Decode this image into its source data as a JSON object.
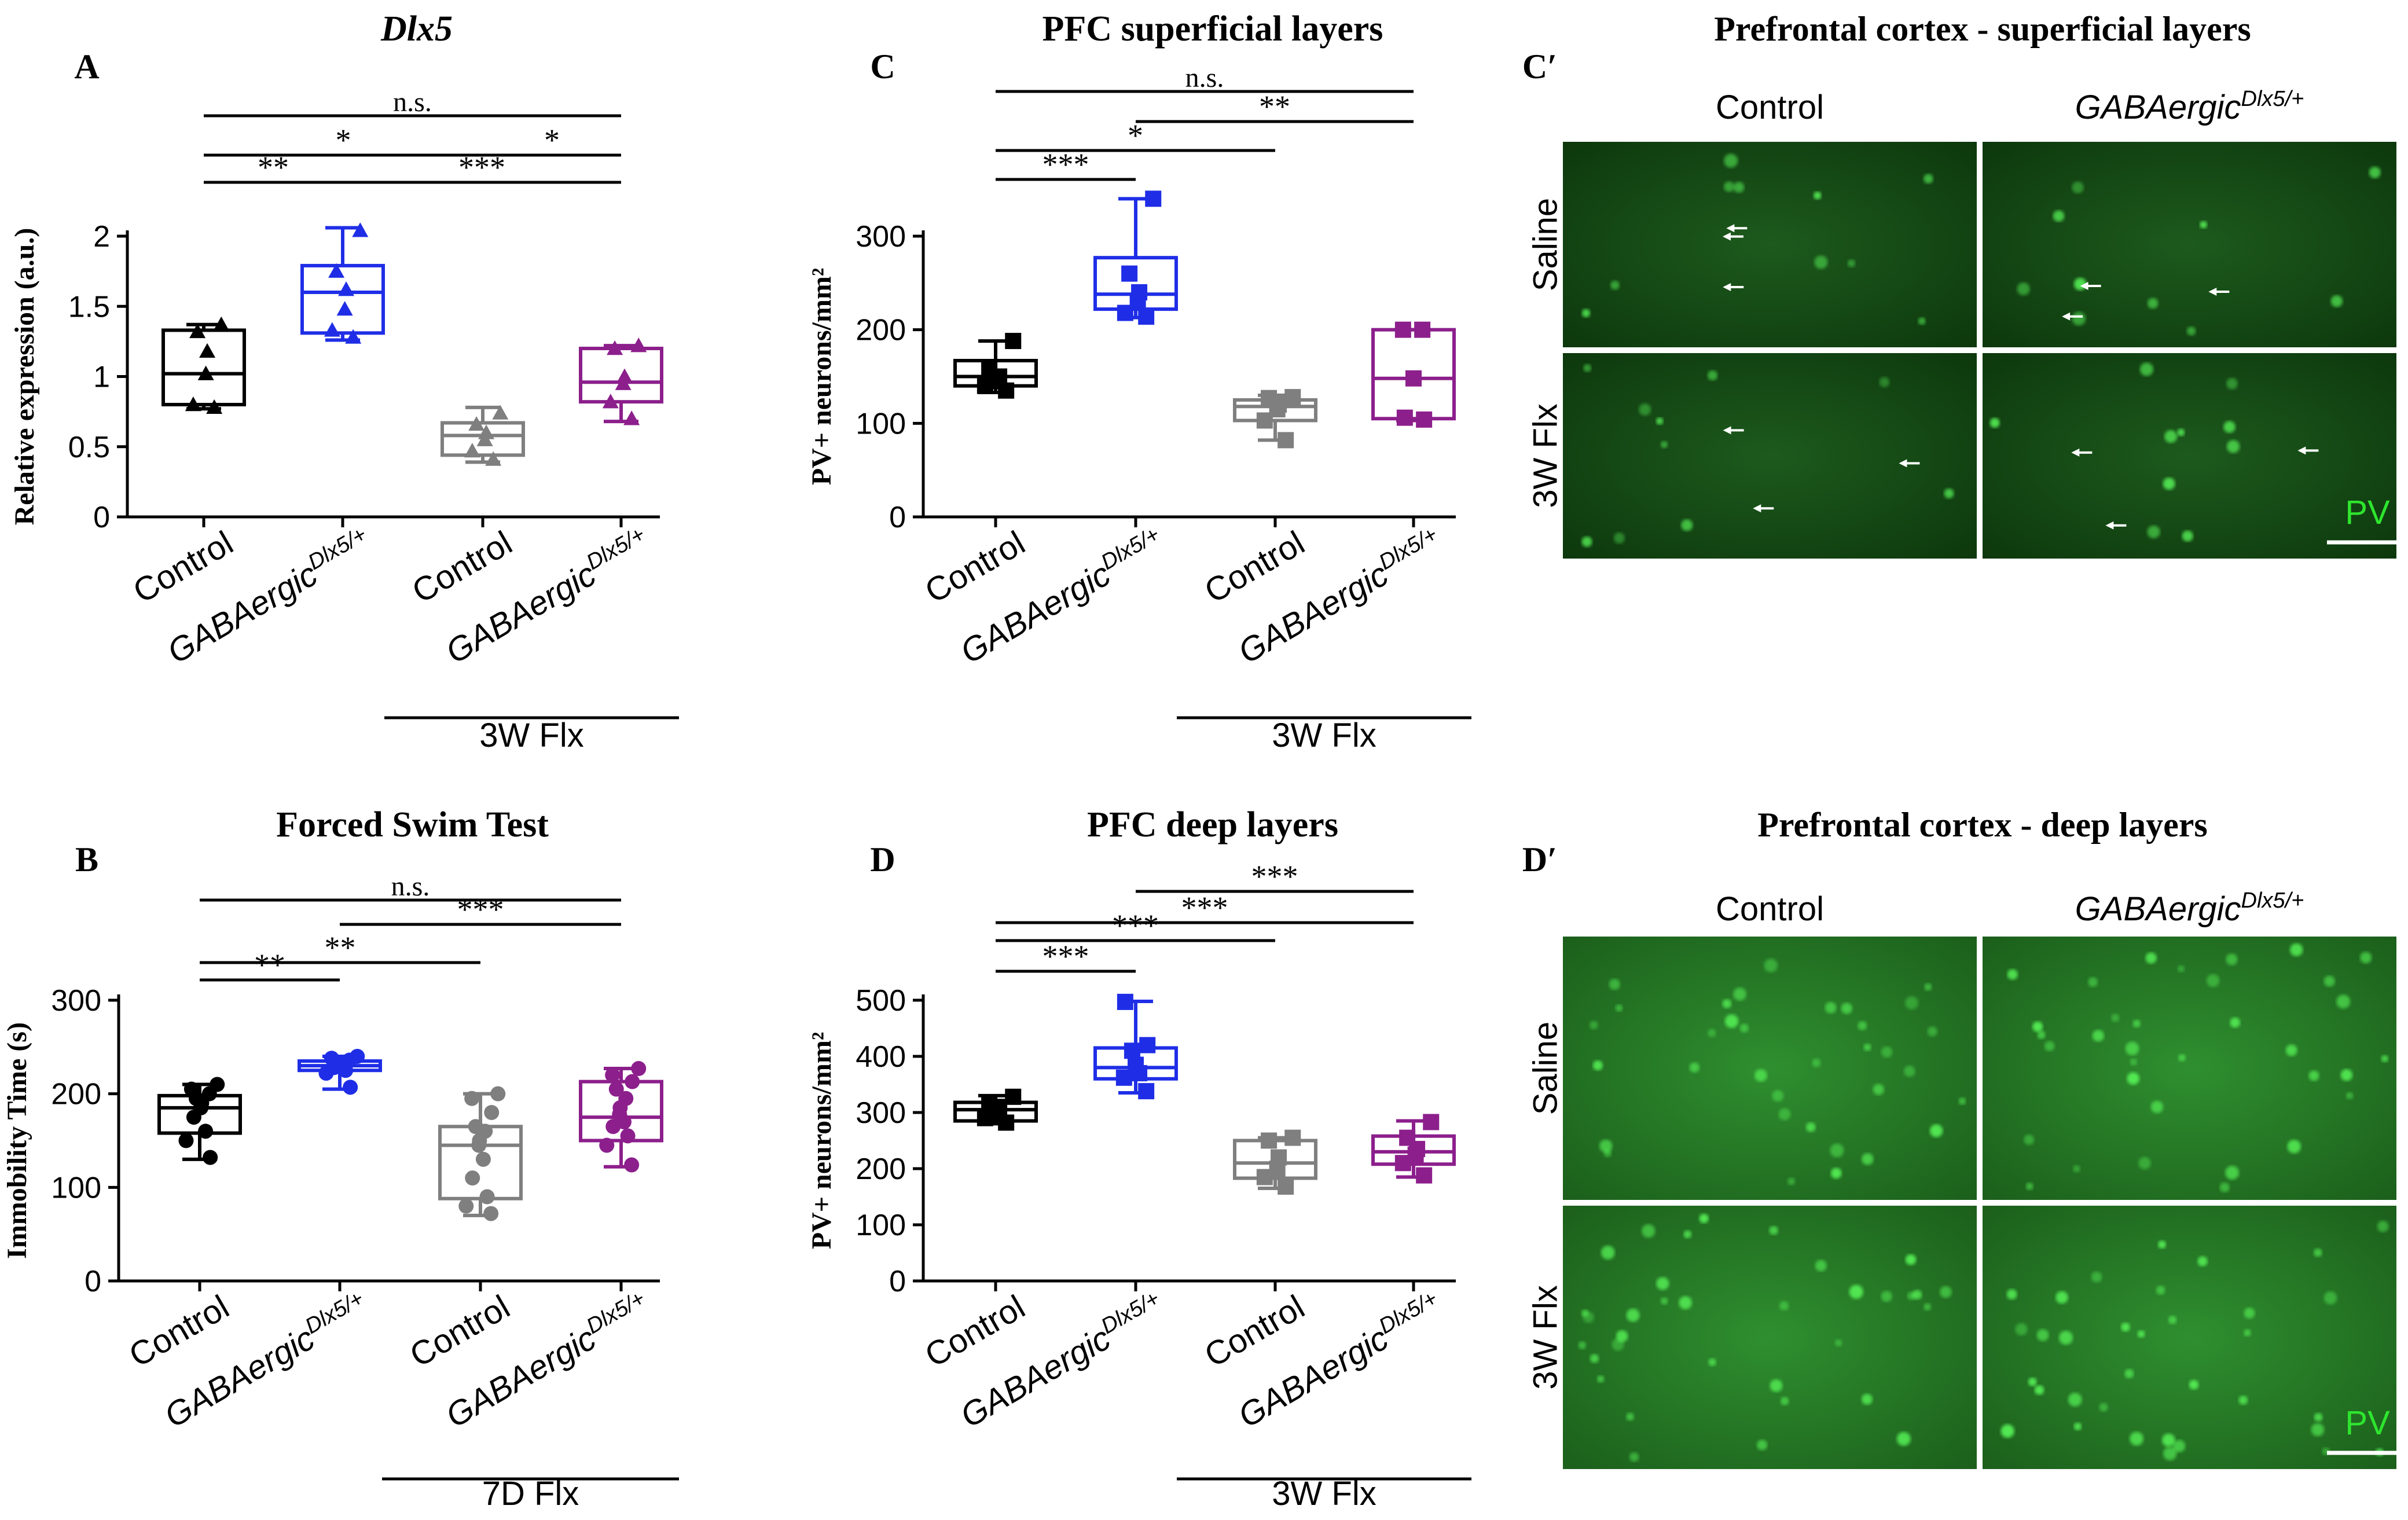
{
  "colors": {
    "black": "#000000",
    "blue": "#1f2ee6",
    "gray": "#7f7f7f",
    "purple": "#8c1f8c",
    "pv_green": "#2ee62e",
    "micro_bg": "#0b3a0b"
  },
  "chart_data": [
    {
      "id": "A",
      "type": "box",
      "panel_letter": "A",
      "title": "Dlx5",
      "title_italic": true,
      "ylabel": "Relative expression (a.u.)",
      "ylim": [
        0,
        2
      ],
      "yticks": [
        "0",
        "0.5",
        "1",
        "1.5",
        "2"
      ],
      "ytick_values": [
        0,
        0.5,
        1,
        1.5,
        2
      ],
      "categories": [
        {
          "label": "Control",
          "sup": "",
          "italic": false
        },
        {
          "label": "GABAergic",
          "sup": "Dlx5/+",
          "italic": true
        },
        {
          "label": "Control",
          "sup": "",
          "italic": false
        },
        {
          "label": "GABAergic",
          "sup": "Dlx5/+",
          "italic": true
        }
      ],
      "group_label": "3W Flx",
      "group_span": [
        2,
        3
      ],
      "marker": "triangle",
      "boxes": [
        {
          "color": "black",
          "min": 0.77,
          "q1": 0.8,
          "median": 1.02,
          "q3": 1.33,
          "max": 1.37,
          "points": [
            0.78,
            0.8,
            1.02,
            1.18,
            1.32,
            1.37
          ]
        },
        {
          "color": "blue",
          "min": 1.26,
          "q1": 1.31,
          "median": 1.6,
          "q3": 1.79,
          "max": 2.06,
          "points": [
            1.28,
            1.33,
            1.48,
            1.62,
            1.75,
            2.04
          ]
        },
        {
          "color": "gray",
          "min": 0.39,
          "q1": 0.44,
          "median": 0.58,
          "q3": 0.67,
          "max": 0.78,
          "points": [
            0.41,
            0.47,
            0.55,
            0.6,
            0.66,
            0.74
          ]
        },
        {
          "color": "purple",
          "min": 0.68,
          "q1": 0.82,
          "median": 0.96,
          "q3": 1.2,
          "max": 1.22,
          "points": [
            0.7,
            0.82,
            0.95,
            1.0,
            1.2,
            1.22
          ]
        }
      ],
      "sig": [
        {
          "from": 0,
          "to": 3,
          "label": "n.s."
        },
        {
          "from": 0,
          "to": 2,
          "label": "*"
        },
        {
          "from": 2,
          "to": 3,
          "label": "*"
        },
        {
          "from": 0,
          "to": 1,
          "label": "**"
        },
        {
          "from": 1,
          "to": 3,
          "label": "***"
        }
      ]
    },
    {
      "id": "C",
      "type": "box",
      "panel_letter": "C",
      "title": "PFC superficial layers",
      "title_italic": false,
      "ylabel": "PV+ neurons/mm²",
      "ylim": [
        0,
        300
      ],
      "yticks": [
        "0",
        "100",
        "200",
        "300"
      ],
      "ytick_values": [
        0,
        100,
        200,
        300
      ],
      "categories": [
        {
          "label": "Control",
          "sup": "",
          "italic": false
        },
        {
          "label": "GABAergic",
          "sup": "Dlx5/+",
          "italic": true
        },
        {
          "label": "Control",
          "sup": "",
          "italic": false
        },
        {
          "label": "GABAergic",
          "sup": "Dlx5/+",
          "italic": true
        }
      ],
      "group_label": "3W Flx",
      "group_span": [
        2,
        3
      ],
      "marker": "square",
      "boxes": [
        {
          "color": "black",
          "min": 133,
          "q1": 140,
          "median": 150,
          "q3": 167,
          "max": 188,
          "points": [
            135,
            140,
            145,
            150,
            160,
            188
          ]
        },
        {
          "color": "blue",
          "min": 213,
          "q1": 222,
          "median": 238,
          "q3": 277,
          "max": 340,
          "points": [
            214,
            218,
            230,
            240,
            260,
            340
          ]
        },
        {
          "color": "gray",
          "min": 82,
          "q1": 103,
          "median": 118,
          "q3": 125,
          "max": 130,
          "points": [
            82,
            103,
            115,
            120,
            127,
            128
          ]
        },
        {
          "color": "purple",
          "min": 103,
          "q1": 105,
          "median": 148,
          "q3": 200,
          "max": 200,
          "points": [
            104,
            106,
            148,
            200,
            200
          ]
        }
      ],
      "sig": [
        {
          "from": 0,
          "to": 3,
          "label": "n.s."
        },
        {
          "from": 1,
          "to": 3,
          "label": "**"
        },
        {
          "from": 0,
          "to": 2,
          "label": "*"
        },
        {
          "from": 0,
          "to": 1,
          "label": "***"
        }
      ]
    },
    {
      "id": "B",
      "type": "box",
      "panel_letter": "B",
      "title": "Forced Swim Test",
      "title_italic": false,
      "ylabel": "Immobility Time (s)",
      "ylim": [
        0,
        300
      ],
      "yticks": [
        "0",
        "100",
        "200",
        "300"
      ],
      "ytick_values": [
        0,
        100,
        200,
        300
      ],
      "categories": [
        {
          "label": "Control",
          "sup": "",
          "italic": false
        },
        {
          "label": "GABAergic",
          "sup": "Dlx5/+",
          "italic": true
        },
        {
          "label": "Control",
          "sup": "",
          "italic": false
        },
        {
          "label": "GABAergic",
          "sup": "Dlx5/+",
          "italic": true
        }
      ],
      "group_label": "7D Flx",
      "group_span": [
        2,
        3
      ],
      "marker": "circle",
      "boxes": [
        {
          "color": "black",
          "min": 130,
          "q1": 158,
          "median": 185,
          "q3": 198,
          "max": 210,
          "points": [
            132,
            150,
            160,
            175,
            185,
            190,
            195,
            200,
            205,
            210
          ]
        },
        {
          "color": "blue",
          "min": 205,
          "q1": 225,
          "median": 230,
          "q3": 235,
          "max": 240,
          "points": [
            207,
            222,
            225,
            228,
            230,
            232,
            234,
            236,
            238,
            240
          ]
        },
        {
          "color": "gray",
          "min": 70,
          "q1": 88,
          "median": 145,
          "q3": 165,
          "max": 200,
          "points": [
            72,
            80,
            90,
            110,
            130,
            145,
            150,
            160,
            165,
            180,
            195,
            200
          ]
        },
        {
          "color": "purple",
          "min": 122,
          "q1": 150,
          "median": 175,
          "q3": 213,
          "max": 227,
          "points": [
            124,
            145,
            155,
            165,
            170,
            178,
            185,
            195,
            205,
            213,
            220,
            227
          ]
        }
      ],
      "sig": [
        {
          "from": 0,
          "to": 3,
          "label": "n.s."
        },
        {
          "from": 1,
          "to": 3,
          "label": "***"
        },
        {
          "from": 0,
          "to": 2,
          "label": "**"
        },
        {
          "from": 0,
          "to": 1,
          "label": "**"
        }
      ]
    },
    {
      "id": "D",
      "type": "box",
      "panel_letter": "D",
      "title": "PFC deep layers",
      "title_italic": false,
      "ylabel": "PV+ neurons/mm²",
      "ylim": [
        0,
        500
      ],
      "yticks": [
        "0",
        "100",
        "200",
        "300",
        "400",
        "500"
      ],
      "ytick_values": [
        0,
        100,
        200,
        300,
        400,
        500
      ],
      "categories": [
        {
          "label": "Control",
          "sup": "",
          "italic": false
        },
        {
          "label": "GABAergic",
          "sup": "Dlx5/+",
          "italic": true
        },
        {
          "label": "Control",
          "sup": "",
          "italic": false
        },
        {
          "label": "GABAergic",
          "sup": "Dlx5/+",
          "italic": true
        }
      ],
      "group_label": "3W Flx",
      "group_span": [
        2,
        3
      ],
      "marker": "square",
      "boxes": [
        {
          "color": "black",
          "min": 280,
          "q1": 285,
          "median": 305,
          "q3": 318,
          "max": 330,
          "points": [
            282,
            290,
            300,
            310,
            318,
            328
          ]
        },
        {
          "color": "blue",
          "min": 335,
          "q1": 360,
          "median": 380,
          "q3": 415,
          "max": 498,
          "points": [
            338,
            362,
            370,
            385,
            410,
            420,
            497
          ]
        },
        {
          "color": "gray",
          "min": 165,
          "q1": 183,
          "median": 210,
          "q3": 250,
          "max": 255,
          "points": [
            168,
            185,
            200,
            220,
            250,
            255
          ]
        },
        {
          "color": "purple",
          "min": 185,
          "q1": 208,
          "median": 230,
          "q3": 258,
          "max": 285,
          "points": [
            188,
            210,
            225,
            235,
            255,
            283
          ]
        }
      ],
      "sig": [
        {
          "from": 1,
          "to": 3,
          "label": "***"
        },
        {
          "from": 0,
          "to": 3,
          "label": "***"
        },
        {
          "from": 0,
          "to": 2,
          "label": "***"
        },
        {
          "from": 0,
          "to": 1,
          "label": "***"
        }
      ]
    }
  ],
  "micrographs": [
    {
      "id": "Cp",
      "panel_letter": "C′",
      "title": "Prefrontal cortex - superficial layers",
      "col_labels": [
        {
          "label": "Control",
          "sup": "",
          "italic": false
        },
        {
          "label": "GABAergic",
          "sup": "Dlx5/+",
          "italic": true
        }
      ],
      "row_labels": [
        "Saline",
        "3W Flx"
      ],
      "stain_label": "PV",
      "brightness": "dim"
    },
    {
      "id": "Dp",
      "panel_letter": "D′",
      "title": "Prefrontal cortex - deep layers",
      "col_labels": [
        {
          "label": "Control",
          "sup": "",
          "italic": false
        },
        {
          "label": "GABAergic",
          "sup": "Dlx5/+",
          "italic": true
        }
      ],
      "row_labels": [
        "Saline",
        "3W Flx"
      ],
      "stain_label": "PV",
      "brightness": "bright"
    }
  ]
}
